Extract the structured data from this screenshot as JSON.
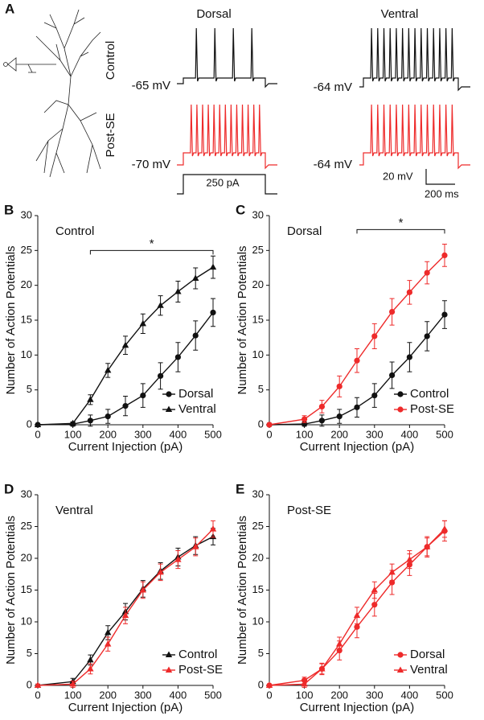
{
  "panel_a": {
    "label": "A",
    "columns": [
      "Dorsal",
      "Ventral"
    ],
    "rows": [
      "Control",
      "Post-SE"
    ],
    "potentials": [
      "-65 mV",
      "-64 mV",
      "-70 mV",
      "-64 mV"
    ],
    "stimulus": "250 pA",
    "scale_v": "20 mV",
    "scale_t": "200 ms"
  },
  "chart_data": [
    {
      "type": "line",
      "panel_label": "B",
      "title": "Control",
      "xlabel": "Current Injection (pA)",
      "ylabel": "Number of Action Potentials",
      "x": [
        0,
        100,
        150,
        200,
        250,
        300,
        350,
        400,
        450,
        500
      ],
      "xlim": [
        0,
        500
      ],
      "ylim": [
        0,
        30
      ],
      "xticks": [
        0,
        100,
        200,
        300,
        400,
        500
      ],
      "yticks": [
        0,
        5,
        10,
        15,
        20,
        25,
        30
      ],
      "legend": "lower right",
      "series": [
        {
          "name": "Dorsal",
          "color": "#111111",
          "marker": "circle",
          "values": [
            0,
            0.1,
            0.6,
            1.2,
            2.7,
            4.2,
            7,
            9.7,
            12.8,
            16.1
          ],
          "errors": [
            0.2,
            0.3,
            0.8,
            1,
            1.4,
            1.7,
            1.9,
            2.1,
            2.1,
            2
          ]
        },
        {
          "name": "Ventral",
          "color": "#111111",
          "marker": "triangle",
          "values": [
            0,
            0.2,
            3.6,
            7.8,
            11.4,
            14.5,
            17.1,
            19.1,
            21,
            22.6
          ],
          "errors": [
            0.1,
            0.2,
            0.7,
            1,
            1.3,
            1.4,
            1.4,
            1.5,
            1.5,
            1.6
          ]
        }
      ],
      "annotations": [
        {
          "text": "*",
          "x": [
            150,
            500
          ],
          "y": 25
        }
      ]
    },
    {
      "type": "line",
      "panel_label": "C",
      "title": "Dorsal",
      "xlabel": "Current Injection (pA)",
      "ylabel": "Number of Action Potentials",
      "x": [
        0,
        100,
        150,
        200,
        250,
        300,
        350,
        400,
        450,
        500
      ],
      "xlim": [
        0,
        500
      ],
      "ylim": [
        0,
        30
      ],
      "xticks": [
        0,
        100,
        200,
        300,
        400,
        500
      ],
      "yticks": [
        0,
        5,
        10,
        15,
        20,
        25,
        30
      ],
      "legend": "lower right",
      "series": [
        {
          "name": "Control",
          "color": "#111111",
          "marker": "circle",
          "values": [
            0,
            0.1,
            0.6,
            1.2,
            2.5,
            4.2,
            7.1,
            9.7,
            12.7,
            15.8
          ],
          "errors": [
            0.2,
            0.3,
            0.8,
            1,
            1.4,
            1.7,
            1.9,
            2.1,
            2.1,
            2
          ]
        },
        {
          "name": "Post-SE",
          "color": "#ee2a2a",
          "marker": "circle",
          "values": [
            0,
            0.8,
            2.6,
            5.5,
            9.2,
            12.7,
            16.2,
            19,
            21.8,
            24.3
          ],
          "errors": [
            0.2,
            0.5,
            0.9,
            1.5,
            1.7,
            1.8,
            1.9,
            1.7,
            1.6,
            1.6
          ]
        }
      ],
      "annotations": [
        {
          "text": "*",
          "x": [
            250,
            500
          ],
          "y": 28
        }
      ]
    },
    {
      "type": "line",
      "panel_label": "D",
      "title": "Ventral",
      "xlabel": "Current Injection (pA)",
      "ylabel": "Number of Action Potentials",
      "x": [
        0,
        100,
        150,
        200,
        250,
        300,
        350,
        400,
        450,
        500
      ],
      "xlim": [
        0,
        500
      ],
      "ylim": [
        0,
        30
      ],
      "xticks": [
        0,
        100,
        200,
        300,
        400,
        500
      ],
      "yticks": [
        0,
        5,
        10,
        15,
        20,
        25,
        30
      ],
      "legend": "lower right",
      "series": [
        {
          "name": "Control",
          "color": "#111111",
          "marker": "triangle",
          "values": [
            0,
            0.6,
            4,
            8.3,
            11.6,
            15.2,
            18,
            20.2,
            22,
            23.4
          ],
          "errors": [
            0.2,
            0.5,
            0.8,
            1.1,
            1.3,
            1.3,
            1.3,
            1.4,
            1.4,
            1.3
          ]
        },
        {
          "name": "Post-SE",
          "color": "#ee2a2a",
          "marker": "triangle",
          "values": [
            0,
            0.2,
            2.6,
            6.5,
            11,
            15,
            17.8,
            19.8,
            21.8,
            24.6
          ],
          "errors": [
            0.2,
            0.5,
            0.8,
            1.1,
            1.3,
            1.3,
            1.3,
            1.4,
            1.4,
            1.3
          ]
        }
      ],
      "annotations": []
    },
    {
      "type": "line",
      "panel_label": "E",
      "title": "Post-SE",
      "xlabel": "Current Injection (pA)",
      "ylabel": "Number of Action Potentials",
      "x": [
        0,
        100,
        150,
        200,
        250,
        300,
        350,
        400,
        450,
        500
      ],
      "xlim": [
        0,
        500
      ],
      "ylim": [
        0,
        30
      ],
      "xticks": [
        0,
        100,
        200,
        300,
        400,
        500
      ],
      "yticks": [
        0,
        5,
        10,
        15,
        20,
        25,
        30
      ],
      "legend": "lower right",
      "series": [
        {
          "name": "Dorsal",
          "color": "#ee2a2a",
          "marker": "circle",
          "values": [
            0,
            0.8,
            2.6,
            5.5,
            9.2,
            12.7,
            16.2,
            19,
            21.8,
            24.3
          ],
          "errors": [
            0.2,
            0.5,
            0.9,
            1.5,
            1.7,
            1.8,
            1.9,
            1.7,
            1.6,
            1.6
          ]
        },
        {
          "name": "Ventral",
          "color": "#ee2a2a",
          "marker": "triangle",
          "values": [
            0,
            0.2,
            2.6,
            6.5,
            11,
            15,
            17.8,
            19.8,
            21.8,
            24.6
          ],
          "errors": [
            0.2,
            0.5,
            0.8,
            1.1,
            1.3,
            1.3,
            1.3,
            1.4,
            1.4,
            1.3
          ]
        }
      ],
      "annotations": []
    }
  ]
}
